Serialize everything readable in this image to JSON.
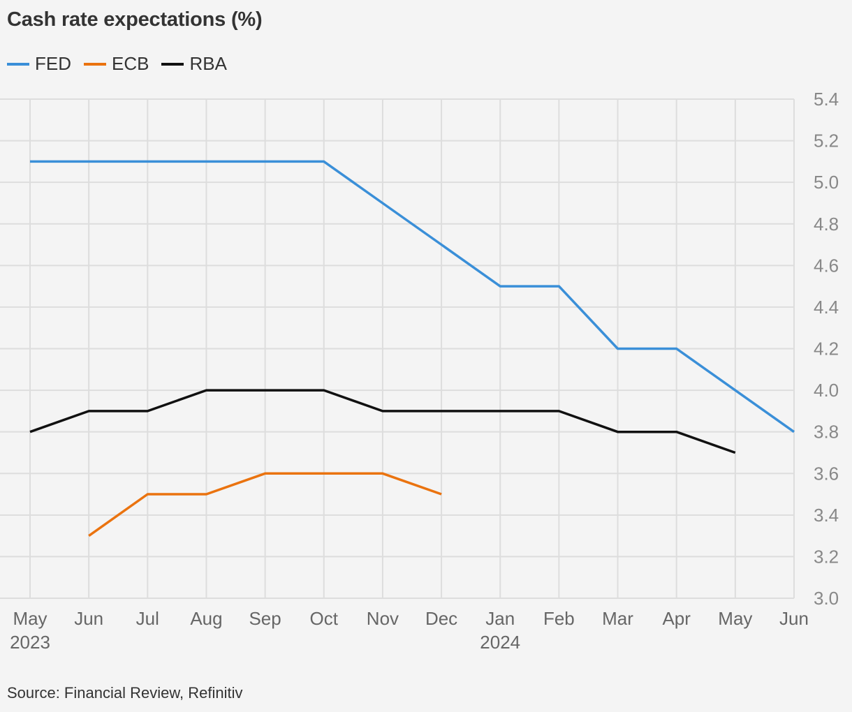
{
  "title": "Cash rate expectations (%)",
  "source": "Source: Financial Review, Refinitiv",
  "colors": {
    "fed": "#3a8fd8",
    "ecb": "#ea730f",
    "rba": "#111111",
    "grid": "#dddddd",
    "tick_text": "#888888",
    "month_text": "#666666"
  },
  "legend": [
    {
      "name": "FED",
      "color": "#3a8fd8"
    },
    {
      "name": "ECB",
      "color": "#ea730f"
    },
    {
      "name": "RBA",
      "color": "#111111"
    }
  ],
  "chart_data": {
    "type": "line",
    "title": "Cash rate expectations (%)",
    "x": [
      "May",
      "Jun",
      "Jul",
      "Aug",
      "Sep",
      "Oct",
      "Nov",
      "Dec",
      "Jan",
      "Feb",
      "Mar",
      "Apr",
      "May",
      "Jun"
    ],
    "x_year_labels": [
      {
        "label": "2023",
        "month": "May"
      },
      {
        "label": "2024",
        "month": "Jan"
      }
    ],
    "yticks": [
      "3.0",
      "3.2",
      "3.4",
      "3.6",
      "3.8",
      "4.0",
      "4.2",
      "4.4",
      "4.6",
      "4.8",
      "5.0",
      "5.2",
      "5.4"
    ],
    "ylim": [
      3.0,
      5.4
    ],
    "y_axis_side": "right",
    "grid": true,
    "legend_position": "top-left",
    "series": [
      {
        "name": "FED",
        "color": "#3a8fd8",
        "values": [
          5.1,
          5.1,
          5.1,
          5.1,
          5.1,
          5.1,
          4.9,
          4.7,
          4.5,
          4.5,
          4.2,
          4.2,
          4.0,
          3.8
        ]
      },
      {
        "name": "ECB",
        "color": "#ea730f",
        "values": [
          null,
          3.3,
          3.5,
          3.5,
          3.6,
          3.6,
          3.6,
          3.5,
          null,
          null,
          null,
          null,
          null,
          null
        ]
      },
      {
        "name": "RBA",
        "color": "#111111",
        "values": [
          3.8,
          3.9,
          3.9,
          4.0,
          4.0,
          4.0,
          3.9,
          3.9,
          3.9,
          3.9,
          3.8,
          3.8,
          3.7,
          null
        ]
      }
    ]
  }
}
